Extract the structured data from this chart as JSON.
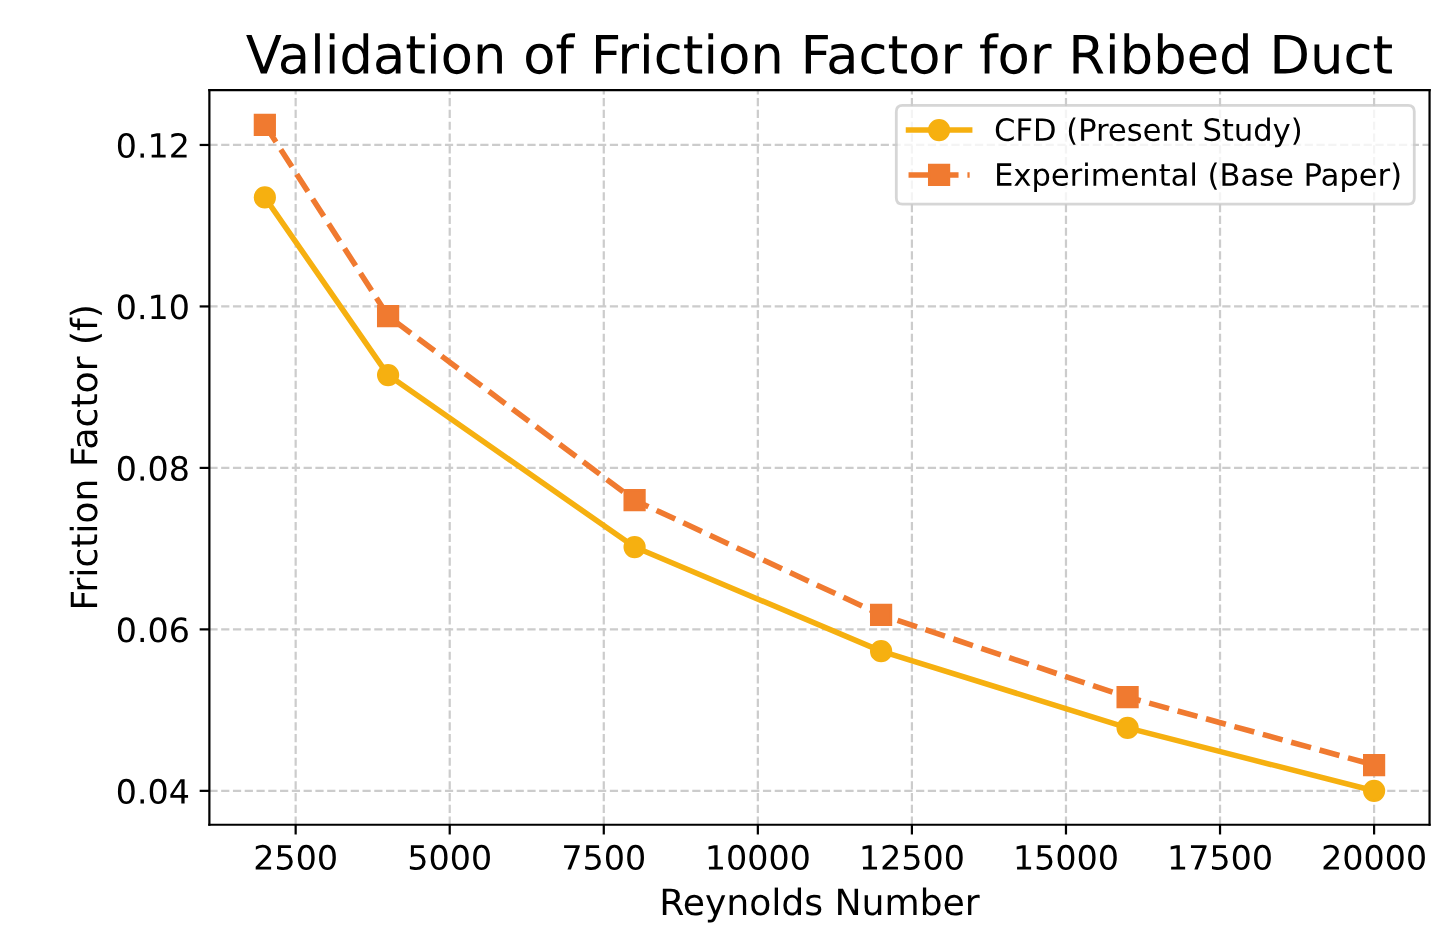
{
  "chart_data": {
    "type": "line",
    "title": "Validation of Friction Factor for Ribbed Duct",
    "xlabel": "Reynolds Number",
    "ylabel": "Friction Factor (f)",
    "x": [
      2000,
      4000,
      8000,
      12000,
      16000,
      20000
    ],
    "series": [
      {
        "name": "CFD (Present Study)",
        "color": "#f6b010",
        "marker": "circle",
        "line_style": "solid",
        "values": [
          0.1135,
          0.0915,
          0.0702,
          0.0573,
          0.0478,
          0.04
        ]
      },
      {
        "name": "Experimental (Base Paper)",
        "color": "#f07a30",
        "marker": "square",
        "line_style": "dashed",
        "values": [
          0.1225,
          0.0988,
          0.076,
          0.0618,
          0.0516,
          0.0432
        ]
      }
    ],
    "xlim": [
      1100,
      20900
    ],
    "xticks": [
      2500,
      5000,
      7500,
      10000,
      12500,
      15000,
      17500,
      20000
    ],
    "ylim": [
      0.0358,
      0.1268
    ],
    "yticks": [
      {
        "value": 0.04,
        "label": "0.04"
      },
      {
        "value": 0.06,
        "label": "0.06"
      },
      {
        "value": 0.08,
        "label": "0.08"
      },
      {
        "value": 0.1,
        "label": "0.10"
      },
      {
        "value": 0.12,
        "label": "0.12"
      }
    ],
    "grid": true,
    "legend": "top right"
  }
}
